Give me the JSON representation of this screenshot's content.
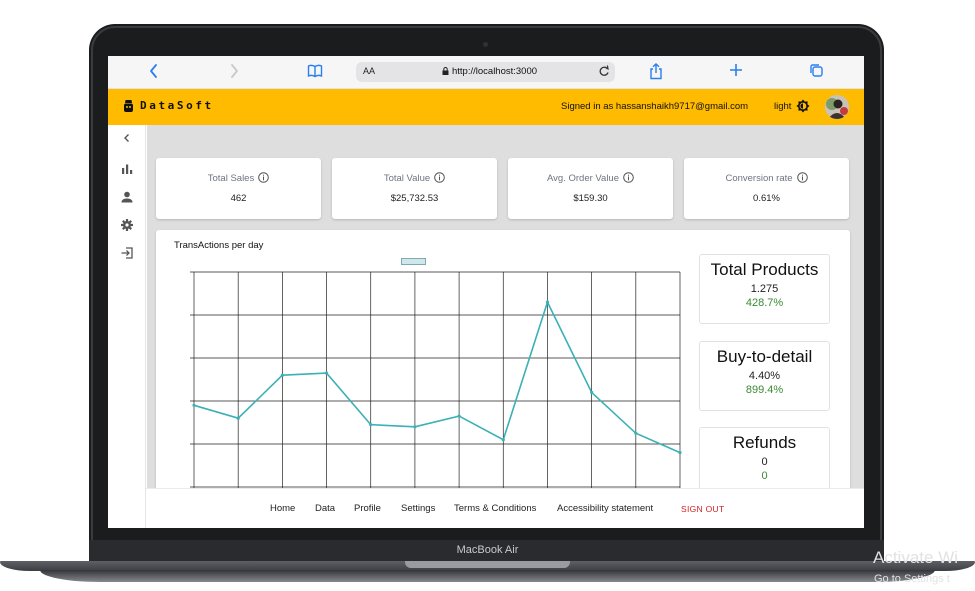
{
  "device": {
    "label": "MacBook Air"
  },
  "browser": {
    "url": "http://localhost:3000",
    "text_size_label": "AA",
    "icons": [
      "back-icon",
      "forward-icon",
      "bookmarks-icon",
      "reload-icon",
      "share-icon",
      "new-tab-icon",
      "tabs-icon"
    ]
  },
  "header": {
    "brand": "DataSoft",
    "signed_in": "Signed in as hassanshaikh9717@gmail.com",
    "theme_label": "light",
    "accent": "#ffbb00"
  },
  "sidebar": {
    "icons": [
      "collapse-chevron-icon",
      "bar-chart-icon",
      "user-icon",
      "gear-icon",
      "sign-out-icon"
    ]
  },
  "kpis": [
    {
      "title": "Total Sales",
      "value": "462"
    },
    {
      "title": "Total Value",
      "value": "$25,732.53"
    },
    {
      "title": "Avg. Order Value",
      "value": "$159.30"
    },
    {
      "title": "Conversion rate",
      "value": "0.61%"
    }
  ],
  "chart_data": {
    "type": "line",
    "title": "TransActions per day",
    "xlabel": "",
    "ylabel": "",
    "legend_placement": "top-center",
    "grid": true,
    "ylim": [
      0,
      6
    ],
    "x": [
      0,
      1,
      2,
      3,
      4,
      5,
      6,
      7,
      8,
      9,
      10,
      11
    ],
    "series": [
      {
        "values": [
          2.9,
          2.6,
          3.6,
          3.65,
          2.45,
          2.4,
          2.65,
          2.1,
          5.3,
          3.2,
          2.25,
          1.8
        ],
        "color": "#3bb0b5"
      }
    ]
  },
  "stats": [
    {
      "title": "Total Products",
      "value": "1.275",
      "pct": "428.7%"
    },
    {
      "title": "Buy-to-detail",
      "value": "4.40%",
      "pct": "899.4%"
    },
    {
      "title": "Refunds",
      "value": "0",
      "pct": "0"
    }
  ],
  "footer": {
    "links": [
      "Home",
      "Data",
      "Profile",
      "Settings",
      "Terms & Conditions",
      "Accessibility statement"
    ],
    "sign_out": "SIGN OUT"
  },
  "watermark": {
    "line1": "Activate Wi",
    "line2": "Go to Settings t"
  }
}
